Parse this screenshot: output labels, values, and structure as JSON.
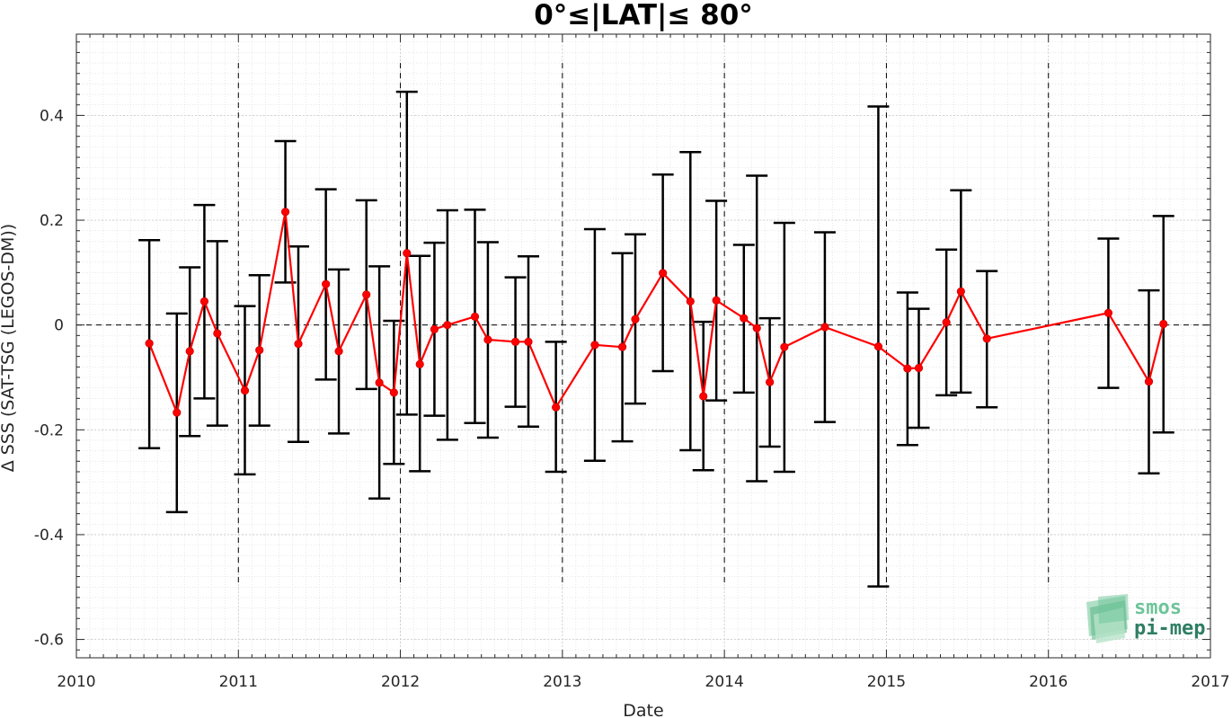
{
  "chart_data": {
    "type": "line",
    "title": "0°≤|LAT|≤ 80°",
    "xlabel": "Date",
    "ylabel": "Δ SSS (SAT-TSG (LEGOS-DM))",
    "xlim": [
      2010,
      2017
    ],
    "ylim": [
      -0.635,
      0.555
    ],
    "x_ticks": [
      "2010",
      "2011",
      "2012",
      "2013",
      "2014",
      "2015",
      "2016",
      "2017"
    ],
    "y_ticks": [
      "-0.6",
      "-0.4",
      "-0.2",
      "0",
      "0.2",
      "0.4"
    ],
    "grid": true,
    "zero_line": true,
    "year_separators": [
      2011,
      2012,
      2013,
      2014,
      2015,
      2016
    ],
    "colors": {
      "series": "#ff0000",
      "errorbar": "#000000",
      "grid": "#d9d9d9"
    },
    "series": [
      {
        "points": [
          {
            "x": 2010.45,
            "y": -0.035,
            "lo": -0.235,
            "hi": 0.162
          },
          {
            "x": 2010.62,
            "y": -0.167,
            "lo": -0.357,
            "hi": 0.022
          },
          {
            "x": 2010.7,
            "y": -0.05,
            "lo": -0.212,
            "hi": 0.11
          },
          {
            "x": 2010.79,
            "y": 0.045,
            "lo": -0.14,
            "hi": 0.229
          },
          {
            "x": 2010.87,
            "y": -0.016,
            "lo": -0.192,
            "hi": 0.16
          },
          {
            "x": 2011.04,
            "y": -0.125,
            "lo": -0.285,
            "hi": 0.036
          },
          {
            "x": 2011.13,
            "y": -0.048,
            "lo": -0.192,
            "hi": 0.095
          },
          {
            "x": 2011.29,
            "y": 0.216,
            "lo": 0.081,
            "hi": 0.351
          },
          {
            "x": 2011.37,
            "y": -0.036,
            "lo": -0.223,
            "hi": 0.15
          },
          {
            "x": 2011.54,
            "y": 0.078,
            "lo": -0.104,
            "hi": 0.259
          },
          {
            "x": 2011.62,
            "y": -0.05,
            "lo": -0.207,
            "hi": 0.106
          },
          {
            "x": 2011.79,
            "y": 0.058,
            "lo": -0.122,
            "hi": 0.238
          },
          {
            "x": 2011.87,
            "y": -0.11,
            "lo": -0.331,
            "hi": 0.112
          },
          {
            "x": 2011.96,
            "y": -0.129,
            "lo": -0.265,
            "hi": 0.008
          },
          {
            "x": 2012.04,
            "y": 0.137,
            "lo": -0.171,
            "hi": 0.445
          },
          {
            "x": 2012.12,
            "y": -0.075,
            "lo": -0.279,
            "hi": 0.132
          },
          {
            "x": 2012.21,
            "y": -0.008,
            "lo": -0.173,
            "hi": 0.157
          },
          {
            "x": 2012.29,
            "y": 0.0,
            "lo": -0.219,
            "hi": 0.219
          },
          {
            "x": 2012.46,
            "y": 0.016,
            "lo": -0.187,
            "hi": 0.22
          },
          {
            "x": 2012.54,
            "y": -0.028,
            "lo": -0.215,
            "hi": 0.158
          },
          {
            "x": 2012.71,
            "y": -0.032,
            "lo": -0.156,
            "hi": 0.091
          },
          {
            "x": 2012.79,
            "y": -0.032,
            "lo": -0.194,
            "hi": 0.131
          },
          {
            "x": 2012.96,
            "y": -0.157,
            "lo": -0.28,
            "hi": -0.032
          },
          {
            "x": 2013.2,
            "y": -0.038,
            "lo": -0.259,
            "hi": 0.183
          },
          {
            "x": 2013.37,
            "y": -0.042,
            "lo": -0.222,
            "hi": 0.137
          },
          {
            "x": 2013.45,
            "y": 0.011,
            "lo": -0.15,
            "hi": 0.173
          },
          {
            "x": 2013.62,
            "y": 0.099,
            "lo": -0.088,
            "hi": 0.287
          },
          {
            "x": 2013.79,
            "y": 0.045,
            "lo": -0.239,
            "hi": 0.33
          },
          {
            "x": 2013.87,
            "y": -0.136,
            "lo": -0.277,
            "hi": 0.006
          },
          {
            "x": 2013.95,
            "y": 0.047,
            "lo": -0.144,
            "hi": 0.237
          },
          {
            "x": 2014.12,
            "y": 0.013,
            "lo": -0.129,
            "hi": 0.153
          },
          {
            "x": 2014.2,
            "y": -0.006,
            "lo": -0.298,
            "hi": 0.285
          },
          {
            "x": 2014.28,
            "y": -0.109,
            "lo": -0.232,
            "hi": 0.013
          },
          {
            "x": 2014.37,
            "y": -0.042,
            "lo": -0.28,
            "hi": 0.195
          },
          {
            "x": 2014.62,
            "y": -0.004,
            "lo": -0.185,
            "hi": 0.177
          },
          {
            "x": 2014.95,
            "y": -0.041,
            "lo": -0.499,
            "hi": 0.417
          },
          {
            "x": 2015.13,
            "y": -0.083,
            "lo": -0.229,
            "hi": 0.062
          },
          {
            "x": 2015.2,
            "y": -0.082,
            "lo": -0.196,
            "hi": 0.031
          },
          {
            "x": 2015.37,
            "y": 0.005,
            "lo": -0.134,
            "hi": 0.144
          },
          {
            "x": 2015.46,
            "y": 0.064,
            "lo": -0.129,
            "hi": 0.257
          },
          {
            "x": 2015.62,
            "y": -0.026,
            "lo": -0.157,
            "hi": 0.103
          },
          {
            "x": 2016.37,
            "y": 0.023,
            "lo": -0.12,
            "hi": 0.165
          },
          {
            "x": 2016.62,
            "y": -0.108,
            "lo": -0.283,
            "hi": 0.066
          },
          {
            "x": 2016.71,
            "y": 0.002,
            "lo": -0.205,
            "hi": 0.208
          }
        ]
      }
    ]
  },
  "logo": {
    "line1": "smos",
    "line2": "pi-mep"
  }
}
